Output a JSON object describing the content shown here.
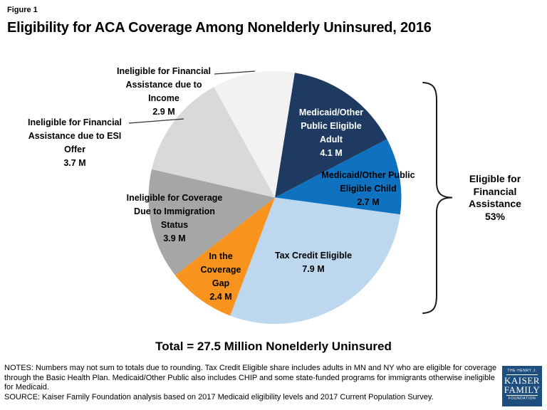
{
  "figure_label": "Figure 1",
  "title": "Eligibility for ACA Coverage Among Nonelderly Uninsured, 2016",
  "chart_data": {
    "type": "pie",
    "title": "Eligibility for ACA Coverage Among Nonelderly Uninsured, 2016",
    "units": "millions of people",
    "total": 27.5,
    "total_label": "Total = 27.5 Million Nonelderly Uninsured",
    "start_angle_deg": 9,
    "slices": [
      {
        "name": "Medicaid/Other Public Eligible Adult",
        "value": 4.1,
        "label": "Medicaid/Other\nPublic Eligible\nAdult\n4.1 M",
        "color": "#1f3a60",
        "label_color": "#ffffff"
      },
      {
        "name": "Medicaid/Other Public Eligible Child",
        "value": 2.7,
        "label": "Medicaid/Other Public\nEligible Child\n2.7 M",
        "color": "#0f72c1",
        "label_color": "#000000"
      },
      {
        "name": "Tax Credit Eligible",
        "value": 7.9,
        "label": "Tax Credit Eligible\n7.9 M",
        "color": "#bdd7ee",
        "label_color": "#000000"
      },
      {
        "name": "In the Coverage Gap",
        "value": 2.4,
        "label": "In the\nCoverage\nGap\n2.4 M",
        "color": "#f8941d",
        "label_color": "#000000"
      },
      {
        "name": "Ineligible for Coverage Due to Immigration Status",
        "value": 3.9,
        "label": "Ineligible for Coverage\nDue to Immigration\nStatus\n3.9 M",
        "color": "#a6a6a6",
        "label_color": "#000000"
      },
      {
        "name": "Ineligible for Financial Assistance due to ESI Offer",
        "value": 3.7,
        "label": "Ineligible for Financial\nAssistance due to ESI\nOffer\n3.7 M",
        "color": "#d9d9d9",
        "label_color": "#000000"
      },
      {
        "name": "Ineligible for Financial Assistance due to Income",
        "value": 2.9,
        "label": "Ineligible for Financial\nAssistance due to\nIncome\n2.9 M",
        "color": "#f2f2f2",
        "label_color": "#000000"
      }
    ],
    "annotation": {
      "label": "Eligible for\nFinancial\nAssistance\n53%",
      "percent": 53
    }
  },
  "notes": "NOTES: Numbers may not sum to totals due to rounding. Tax Credit Eligible share includes adults in MN and NY who are eligible for coverage through the Basic Health Plan. Medicaid/Other Public also includes CHIP and some state-funded programs for immigrants otherwise ineligible for Medicaid.",
  "source": "SOURCE: Kaiser Family Foundation analysis based on 2017 Medicaid eligibility levels and 2017 Current Population Survey.",
  "logo": {
    "line1": "THE HENRY J.",
    "line2": "KAISER",
    "line3": "FAMILY",
    "line4": "FOUNDATION",
    "bg_color": "#1d4e7d"
  }
}
